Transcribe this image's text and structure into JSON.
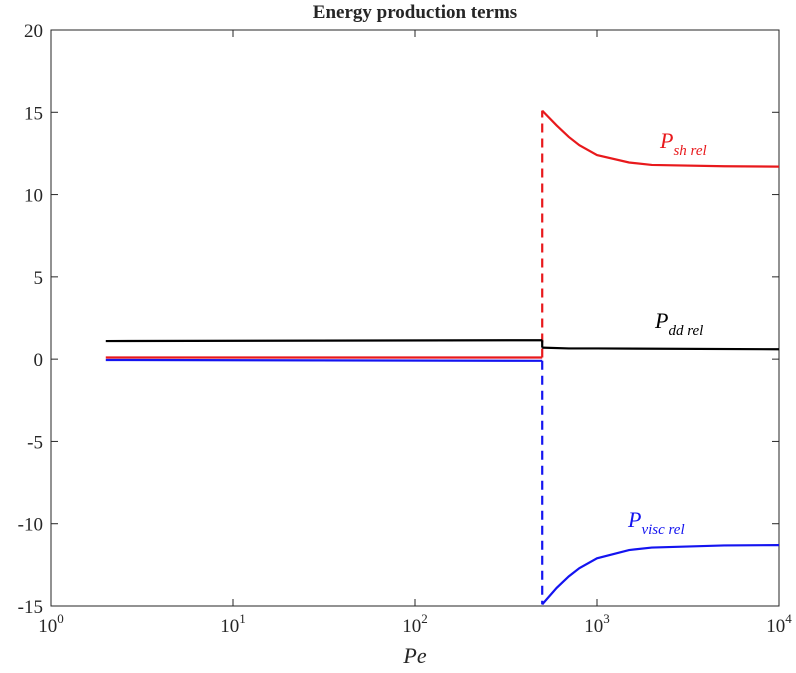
{
  "chart_data": {
    "type": "line",
    "title": "Energy production terms",
    "x_label": "Pe",
    "xscale": "log",
    "xlim": [
      1,
      10000
    ],
    "xticks": [
      {
        "value": 1,
        "label": "10^0"
      },
      {
        "value": 10,
        "label": "10^1"
      },
      {
        "value": 100,
        "label": "10^2"
      },
      {
        "value": 1000,
        "label": "10^3"
      },
      {
        "value": 10000,
        "label": "10^4"
      }
    ],
    "ylim": [
      -15,
      20
    ],
    "yticks": [
      -15,
      -10,
      -5,
      0,
      5,
      10,
      15,
      20
    ],
    "grid": false,
    "series": [
      {
        "name": "P",
        "subscript": "sh rel",
        "color": "#e8191c",
        "connector": "dashed",
        "x": [
          2,
          500,
          null,
          500,
          600,
          700,
          800,
          1000,
          1500,
          2000,
          5000,
          10000
        ],
        "values": [
          0.1,
          0.1,
          null,
          15.1,
          14.2,
          13.5,
          13.0,
          12.4,
          11.95,
          11.8,
          11.72,
          11.7
        ]
      },
      {
        "name": "P",
        "subscript": "dd rel",
        "color": "#000000",
        "connector": "solid",
        "x": [
          2,
          500,
          null,
          500,
          700,
          1000,
          10000
        ],
        "values": [
          1.1,
          1.15,
          null,
          0.7,
          0.65,
          0.65,
          0.6
        ]
      },
      {
        "name": "P",
        "subscript": "visc rel",
        "color": "#1414f0",
        "connector": "dashed",
        "x": [
          2,
          500,
          null,
          500,
          600,
          700,
          800,
          1000,
          1500,
          2000,
          5000,
          10000
        ],
        "values": [
          -0.05,
          -0.1,
          null,
          -14.9,
          -13.9,
          -13.2,
          -12.7,
          -12.1,
          -11.6,
          -11.45,
          -11.32,
          -11.3
        ]
      }
    ]
  }
}
